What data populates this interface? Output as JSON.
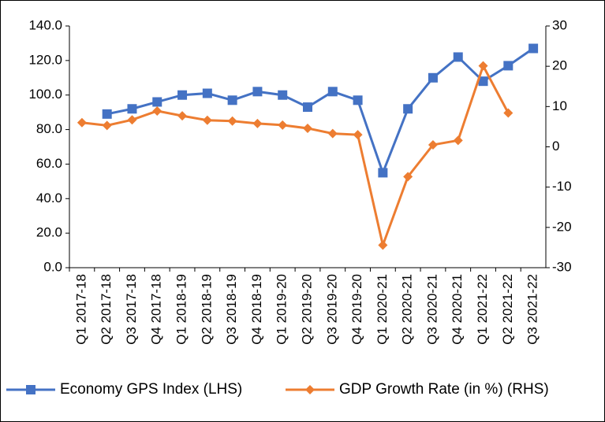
{
  "chart_data": {
    "type": "line",
    "categories": [
      "Q1 2017-18",
      "Q2 2017-18",
      "Q3 2017-18",
      "Q4 2017-18",
      "Q1 2018-19",
      "Q2 2018-19",
      "Q3 2018-19",
      "Q4 2018-19",
      "Q1 2019-20",
      "Q2 2019-20",
      "Q3 2019-20",
      "Q4 2019-20",
      "Q1 2020-21",
      "Q2 2020-21",
      "Q3 2020-21",
      "Q4 2020-21",
      "Q1 2021-22",
      "Q2 2021-22",
      "Q3 2021-22"
    ],
    "series": [
      {
        "name": "Economy GPS Index (LHS)",
        "color": "#4472c4",
        "marker": "square",
        "values": [
          null,
          89,
          92,
          96,
          100,
          101,
          97,
          102,
          100,
          93,
          102,
          97,
          55,
          92,
          110,
          122,
          108,
          117,
          127
        ]
      },
      {
        "name": "GDP Growth Rate (in %) (RHS)",
        "color": "#ed7d31",
        "marker": "diamond",
        "axis": "y2",
        "values": [
          6.0,
          5.3,
          6.7,
          8.9,
          7.7,
          6.6,
          6.4,
          5.8,
          5.4,
          4.6,
          3.3,
          3.0,
          -24.4,
          -7.4,
          0.5,
          1.6,
          20.1,
          8.4,
          null
        ]
      }
    ],
    "ylim": [
      0,
      140
    ],
    "yticks": [
      {
        "value": 0,
        "label": "0.0"
      },
      {
        "value": 20,
        "label": "20.0"
      },
      {
        "value": 40,
        "label": "40.0"
      },
      {
        "value": 60,
        "label": "60.0"
      },
      {
        "value": 80,
        "label": "80.0"
      },
      {
        "value": 100,
        "label": "100.0"
      },
      {
        "value": 120,
        "label": "120.0"
      },
      {
        "value": 140,
        "label": "140.0"
      }
    ],
    "y2lim": [
      -30,
      30
    ],
    "y2ticks": [
      -30,
      -20,
      -10,
      0,
      10,
      20,
      30
    ],
    "legend": "bottom"
  }
}
